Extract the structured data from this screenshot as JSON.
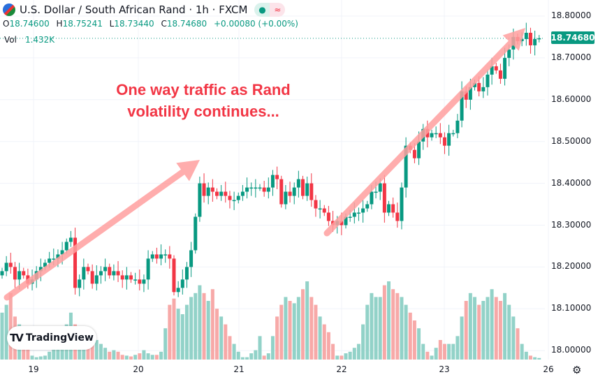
{
  "header": {
    "title": "U.S. Dollar / South African Rand · 1h · FXCM",
    "open_label": "O",
    "open": "18.74600",
    "high_label": "H",
    "high": "18.75241",
    "low_label": "L",
    "low": "18.73440",
    "close_label": "C",
    "close": "18.74680",
    "change": "+0.00080 (+0.00%)",
    "vol_label": "Vol",
    "vol": "1.432K",
    "status_dot": "●",
    "status_wave": "≈"
  },
  "annotation": {
    "line1": "One way traffic as Rand",
    "line2": "volatility continues..."
  },
  "logo": {
    "mark": "TV",
    "text": "TradingView"
  },
  "colors": {
    "up": "#089981",
    "down": "#f23645",
    "vol_up": "#92d2c8",
    "vol_down": "#f7a9a8",
    "arrow": "#ff9f9f"
  },
  "chart_data": {
    "type": "candlestick",
    "y_ticks": [
      "18.80000",
      "18.70000",
      "18.60000",
      "18.50000",
      "18.40000",
      "18.30000",
      "18.20000",
      "18.10000",
      "18.00000"
    ],
    "ylim": [
      18.0,
      18.8
    ],
    "x_ticks": [
      "19",
      "20",
      "21",
      "22",
      "23",
      "26"
    ],
    "current_price": "18.74680",
    "grid": true,
    "closes": [
      18.19,
      18.21,
      18.2,
      18.17,
      18.19,
      18.18,
      18.16,
      18.17,
      18.19,
      18.2,
      18.21,
      18.22,
      18.22,
      18.23,
      18.24,
      18.26,
      18.27,
      18.15,
      18.17,
      18.2,
      18.19,
      18.16,
      18.18,
      18.19,
      18.2,
      18.18,
      18.19,
      18.18,
      18.17,
      18.18,
      18.17,
      18.17,
      18.16,
      18.17,
      18.22,
      18.23,
      18.22,
      18.23,
      18.23,
      18.22,
      18.14,
      18.15,
      18.17,
      18.2,
      18.24,
      18.32,
      18.4,
      18.37,
      18.39,
      18.38,
      18.37,
      18.38,
      18.37,
      18.36,
      18.36,
      18.37,
      18.38,
      18.39,
      18.39,
      18.39,
      18.39,
      18.38,
      18.39,
      18.42,
      18.41,
      18.35,
      18.38,
      18.37,
      18.39,
      18.41,
      18.37,
      18.4,
      18.36,
      18.34,
      18.34,
      18.33,
      18.31,
      18.3,
      18.31,
      18.3,
      18.32,
      18.32,
      18.33,
      18.33,
      18.34,
      18.35,
      18.38,
      18.38,
      18.4,
      18.33,
      18.35,
      18.33,
      18.31,
      18.39,
      18.49,
      18.48,
      18.46,
      18.5,
      18.53,
      18.51,
      18.52,
      18.52,
      18.51,
      18.49,
      18.52,
      18.52,
      18.55,
      18.62,
      18.6,
      18.63,
      18.64,
      18.62,
      18.63,
      18.66,
      18.68,
      18.67,
      18.65,
      18.7,
      18.72,
      18.75,
      18.74,
      18.745,
      18.76,
      18.73,
      18.745,
      18.7468
    ],
    "volumes_relative": [
      60,
      70,
      85,
      55,
      45,
      30,
      15,
      5,
      3,
      4,
      5,
      10,
      20,
      25,
      35,
      45,
      60,
      45,
      40,
      30,
      35,
      30,
      25,
      20,
      15,
      10,
      12,
      10,
      6,
      5,
      4,
      6,
      8,
      12,
      8,
      6,
      6,
      10,
      40,
      70,
      78,
      65,
      58,
      70,
      80,
      85,
      95,
      85,
      75,
      90,
      65,
      55,
      45,
      30,
      20,
      10,
      3,
      3,
      8,
      12,
      30,
      5,
      8,
      30,
      55,
      70,
      80,
      75,
      72,
      80,
      90,
      100,
      80,
      70,
      55,
      45,
      35,
      20,
      5,
      5,
      8,
      10,
      15,
      20,
      45,
      70,
      85,
      80,
      80,
      95,
      100,
      90,
      85,
      80,
      70,
      60,
      50,
      40,
      20,
      10,
      5,
      15,
      25,
      20,
      20,
      20,
      30,
      55,
      75,
      85,
      80,
      70,
      75,
      80,
      90,
      80,
      75,
      85,
      70,
      55,
      40,
      20,
      10,
      5,
      3,
      2
    ]
  }
}
